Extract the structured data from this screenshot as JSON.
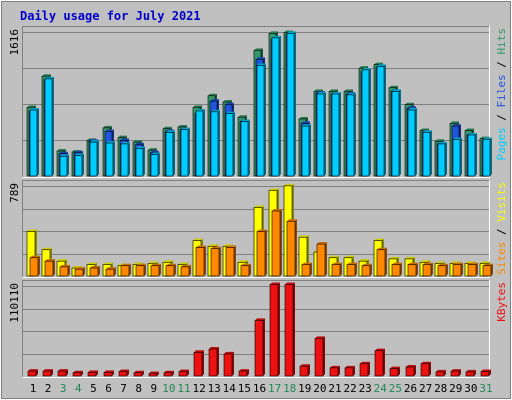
{
  "chart_data": {
    "type": "bar",
    "title": "Daily usage for July 2021",
    "categories": [
      "1",
      "2",
      "3",
      "4",
      "5",
      "6",
      "7",
      "8",
      "9",
      "10",
      "11",
      "12",
      "13",
      "14",
      "15",
      "16",
      "17",
      "18",
      "19",
      "20",
      "21",
      "22",
      "23",
      "24",
      "25",
      "26",
      "27",
      "28",
      "29",
      "30",
      "31"
    ],
    "weekend_days": [
      "3",
      "4",
      "10",
      "11",
      "17",
      "18",
      "24",
      "25",
      "31"
    ],
    "colors": {
      "hits": "#339966",
      "files": "#2255dd",
      "pages": "#00ccff",
      "visits": "#ffff00",
      "sites": "#ff8800",
      "kbytes": "#ee1111",
      "title": "#0000cc",
      "weekend_label": "#228855",
      "panel": "#c0c0c0"
    },
    "panels": [
      {
        "max_label": "1616",
        "ylim": [
          0,
          1616
        ],
        "legend": [
          {
            "text": "Pages",
            "color": "#00ccff"
          },
          {
            "text": " / ",
            "color": "#000000"
          },
          {
            "text": "Files",
            "color": "#2255dd"
          },
          {
            "text": " / ",
            "color": "#000000"
          },
          {
            "text": "Hits",
            "color": "#339966"
          }
        ],
        "series": [
          {
            "name": "Hits",
            "values": [
              770,
              1120,
              280,
              270,
              400,
              540,
              430,
              380,
              290,
              530,
              550,
              770,
              900,
              830,
              660,
              1410,
              1600,
              1610,
              640,
              950,
              950,
              950,
              1210,
              1250,
              990,
              800,
              510,
              390,
              590,
              510,
              420
            ]
          },
          {
            "name": "Files",
            "values": [
              730,
              1080,
              250,
              260,
              390,
              500,
              400,
              350,
              260,
              500,
              520,
              700,
              840,
              800,
              610,
              1310,
              1530,
              1590,
              590,
              930,
              920,
              920,
              1170,
              1220,
              950,
              760,
              490,
              360,
              560,
              460,
              400
            ]
          },
          {
            "name": "Pages",
            "values": [
              740,
              1090,
              220,
              230,
              380,
              370,
              360,
              310,
              240,
              490,
              520,
              730,
              720,
              700,
              610,
              1240,
              1550,
              1600,
              560,
              920,
              920,
              910,
              1190,
              1230,
              950,
              740,
              490,
              360,
              410,
              460,
              410
            ]
          }
        ]
      },
      {
        "max_label": "789",
        "ylim": [
          0,
          789
        ],
        "legend": [
          {
            "text": "Sites",
            "color": "#ff8800"
          },
          {
            "text": " / ",
            "color": "#000000"
          },
          {
            "text": "Visits",
            "color": "#ffff00"
          }
        ],
        "series": [
          {
            "name": "Visits",
            "values": [
              390,
              230,
              130,
              70,
              100,
              100,
              90,
              100,
              110,
              120,
              100,
              310,
              260,
              260,
              120,
              600,
              750,
              790,
              340,
              210,
              160,
              160,
              130,
              310,
              150,
              150,
              120,
              110,
              110,
              110,
              110
            ]
          },
          {
            "name": "Sites",
            "values": [
              160,
              130,
              80,
              60,
              70,
              60,
              90,
              90,
              90,
              90,
              80,
              250,
              240,
              250,
              90,
              390,
              570,
              480,
              100,
              280,
              100,
              100,
              90,
              230,
              100,
              100,
              100,
              90,
              100,
              100,
              90
            ]
          }
        ]
      },
      {
        "max_label": "110110",
        "ylim": [
          0,
          110110
        ],
        "legend": [
          {
            "text": "KBytes",
            "color": "#ee1111"
          }
        ],
        "series": [
          {
            "name": "KBytes",
            "values": [
              6000,
              6000,
              6000,
              4000,
              4500,
              4500,
              5500,
              4000,
              3000,
              4000,
              5500,
              29000,
              33000,
              27000,
              6000,
              68000,
              112000,
              112000,
              12000,
              46000,
              10000,
              10000,
              15000,
              31000,
              9000,
              11000,
              15000,
              5000,
              6000,
              5000,
              5500
            ]
          }
        ]
      }
    ]
  }
}
